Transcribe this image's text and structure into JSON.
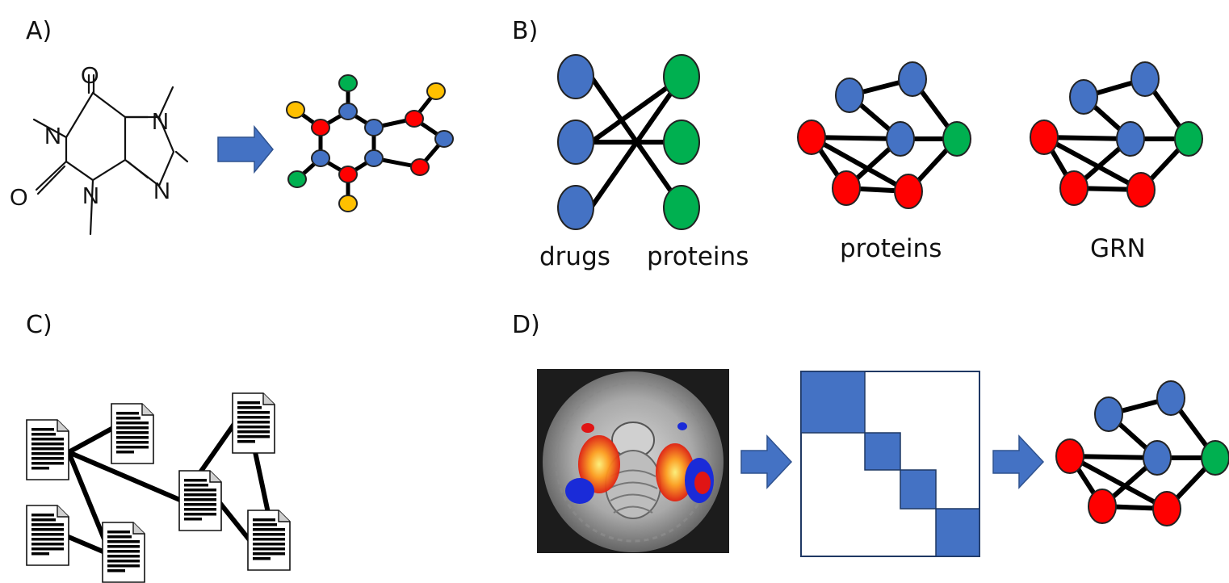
{
  "panels": {
    "a": {
      "label": "A)",
      "atoms": [
        "O",
        "N",
        "N",
        "O",
        "N",
        "N"
      ]
    },
    "b": {
      "label": "B)",
      "captions": [
        "drugs",
        "proteins",
        "proteins",
        "GRN"
      ]
    },
    "c": {
      "label": "C)"
    },
    "d": {
      "label": "D)"
    }
  },
  "colors": {
    "blue": "#4472c4",
    "red": "#ff0000",
    "green": "#00b050",
    "yellow": "#ffc000",
    "arrow": "#4472c4",
    "matrix_block": "#4472c4"
  },
  "icons": [
    "document-icon",
    "arrow-right-icon",
    "brain-mri-image"
  ]
}
